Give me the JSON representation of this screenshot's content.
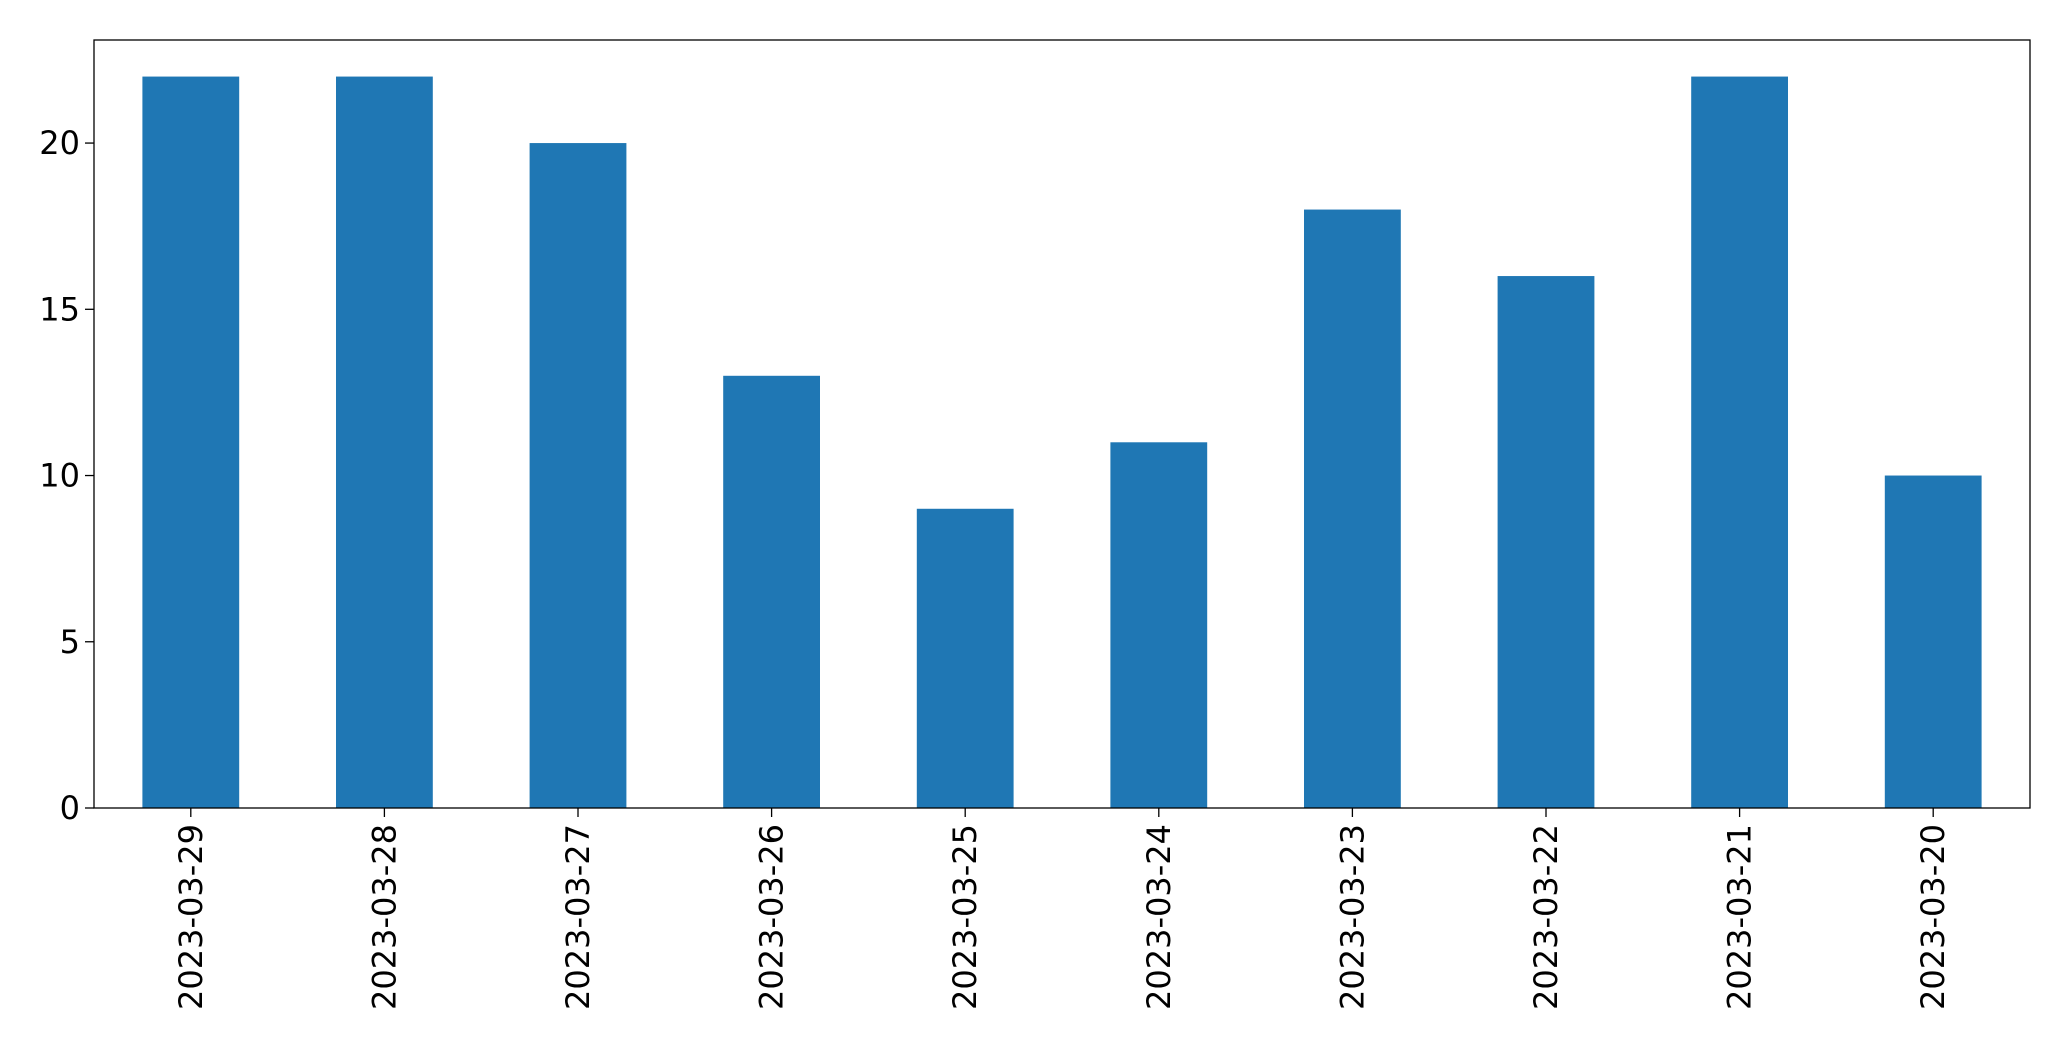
{
  "chart_data": {
    "type": "bar",
    "categories": [
      "2023-03-29",
      "2023-03-28",
      "2023-03-27",
      "2023-03-26",
      "2023-03-25",
      "2023-03-24",
      "2023-03-23",
      "2023-03-22",
      "2023-03-21",
      "2023-03-20"
    ],
    "values": [
      22,
      22,
      20,
      13,
      9,
      11,
      18,
      16,
      22,
      10
    ],
    "color": "#1f77b4",
    "ylim": [
      0,
      23.1
    ],
    "yticks": [
      0,
      5,
      10,
      15,
      20
    ],
    "grid": false
  }
}
